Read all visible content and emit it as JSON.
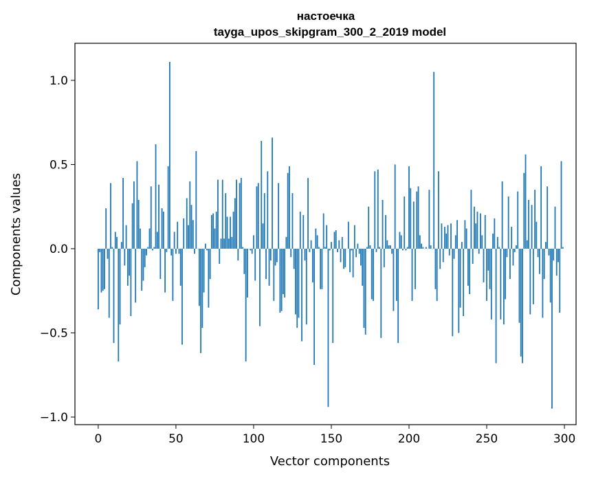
{
  "chart_data": {
    "type": "bar",
    "title": "настоечка",
    "subtitle": "tayga_upos_skipgram_300_2_2019 model",
    "xlabel": "Vector components",
    "ylabel": "Components values",
    "xlim": [
      -15,
      307.5
    ],
    "ylim": [
      -1.045,
      1.22
    ],
    "xticks": [
      0,
      50,
      100,
      150,
      200,
      250,
      300
    ],
    "yticks": [
      -1.0,
      -0.5,
      0.0,
      0.5,
      1.0
    ],
    "ytick_labels": [
      "−1.0",
      "−0.5",
      "0.0",
      "0.5",
      "1.0"
    ],
    "grid": false,
    "bar_color": "#1f77b4",
    "values": [
      -0.36,
      -0.02,
      -0.26,
      -0.25,
      -0.24,
      0.24,
      -0.06,
      -0.41,
      0.39,
      0.01,
      -0.56,
      0.1,
      0.07,
      -0.67,
      -0.45,
      0.04,
      0.42,
      -0.1,
      0.14,
      -0.22,
      -0.16,
      -0.4,
      0.27,
      0.4,
      -0.32,
      0.52,
      0.29,
      0.12,
      -0.25,
      -0.19,
      -0.11,
      -0.04,
      0.01,
      0.12,
      0.37,
      -0.01,
      0.01,
      0.62,
      0.1,
      0.38,
      -0.18,
      0.24,
      0.22,
      -0.26,
      -0.02,
      0.49,
      1.11,
      -0.04,
      -0.31,
      0.1,
      -0.03,
      0.16,
      -0.03,
      -0.22,
      -0.57,
      0.18,
      0.0,
      0.3,
      0.14,
      0.4,
      0.26,
      0.17,
      -0.03,
      0.58,
      0.0,
      -0.34,
      -0.62,
      -0.47,
      -0.26,
      0.03,
      -0.01,
      -0.35,
      -0.18,
      0.2,
      0.21,
      0.12,
      0.22,
      0.41,
      -0.09,
      0.06,
      0.41,
      0.06,
      0.33,
      0.19,
      0.06,
      0.19,
      0.07,
      0.22,
      0.3,
      0.41,
      -0.07,
      0.39,
      0.42,
      0.01,
      -0.15,
      -0.67,
      -0.29,
      0.0,
      -0.01,
      -0.03,
      0.08,
      -0.19,
      0.37,
      0.39,
      -0.46,
      0.64,
      0.15,
      0.33,
      -0.18,
      0.46,
      -0.22,
      -0.07,
      0.66,
      -0.31,
      -0.1,
      -0.08,
      0.39,
      -0.38,
      -0.37,
      -0.27,
      -0.29,
      0.07,
      0.45,
      0.49,
      -0.05,
      0.33,
      -0.12,
      -0.39,
      -0.47,
      -0.41,
      0.22,
      -0.55,
      0.2,
      -0.07,
      -0.45,
      0.42,
      -0.02,
      0.05,
      -0.2,
      -0.69,
      0.12,
      0.08,
      0.01,
      -0.24,
      -0.24,
      0.21,
      0.01,
      0.14,
      -0.94,
      -0.01,
      0.04,
      -0.56,
      0.1,
      0.11,
      -0.02,
      0.05,
      -0.08,
      0.07,
      -0.12,
      -0.11,
      0.0,
      0.16,
      -0.14,
      -0.01,
      -0.17,
      0.14,
      -0.05,
      0.03,
      -0.03,
      -0.1,
      -0.22,
      -0.47,
      -0.51,
      0.01,
      0.25,
      0.02,
      -0.3,
      -0.31,
      0.46,
      -0.02,
      0.47,
      0.01,
      -0.53,
      0.29,
      -0.11,
      0.2,
      0.05,
      0.02,
      0.02,
      -0.03,
      -0.37,
      0.5,
      -0.31,
      -0.56,
      0.1,
      0.08,
      -0.01,
      0.31,
      -0.01,
      0.01,
      0.49,
      0.36,
      -0.31,
      0.28,
      -0.24,
      0.34,
      0.37,
      0.08,
      0.03,
      0.01,
      0.0,
      0.01,
      0.0,
      0.35,
      0.02,
      0.0,
      1.05,
      -0.24,
      -0.31,
      0.46,
      -0.12,
      0.15,
      -0.08,
      0.13,
      0.09,
      0.14,
      -0.04,
      0.15,
      -0.52,
      -0.06,
      0.08,
      0.17,
      -0.5,
      -0.35,
      0.04,
      -0.4,
      0.17,
      0.12,
      -0.22,
      -0.27,
      0.35,
      -0.09,
      0.25,
      0.15,
      0.22,
      -0.03,
      0.21,
      0.08,
      -0.2,
      0.2,
      -0.31,
      -0.13,
      -0.24,
      -0.42,
      0.09,
      0.18,
      -0.68,
      0.07,
      0.01,
      -0.42,
      0.4,
      -0.45,
      -0.3,
      -0.05,
      0.31,
      -0.18,
      0.13,
      -0.1,
      -0.02,
      0.02,
      0.34,
      -0.44,
      -0.64,
      -0.68,
      0.45,
      0.56,
      0.05,
      0.29,
      -0.39,
      0.26,
      -0.33,
      0.35,
      0.16,
      -0.05,
      -0.15,
      0.49,
      -0.41,
      -0.18,
      0.04,
      0.37,
      -0.04,
      -0.32,
      -0.95,
      -0.07,
      0.25,
      -0.16,
      -0.08,
      -0.38,
      0.52,
      0.01
    ]
  }
}
